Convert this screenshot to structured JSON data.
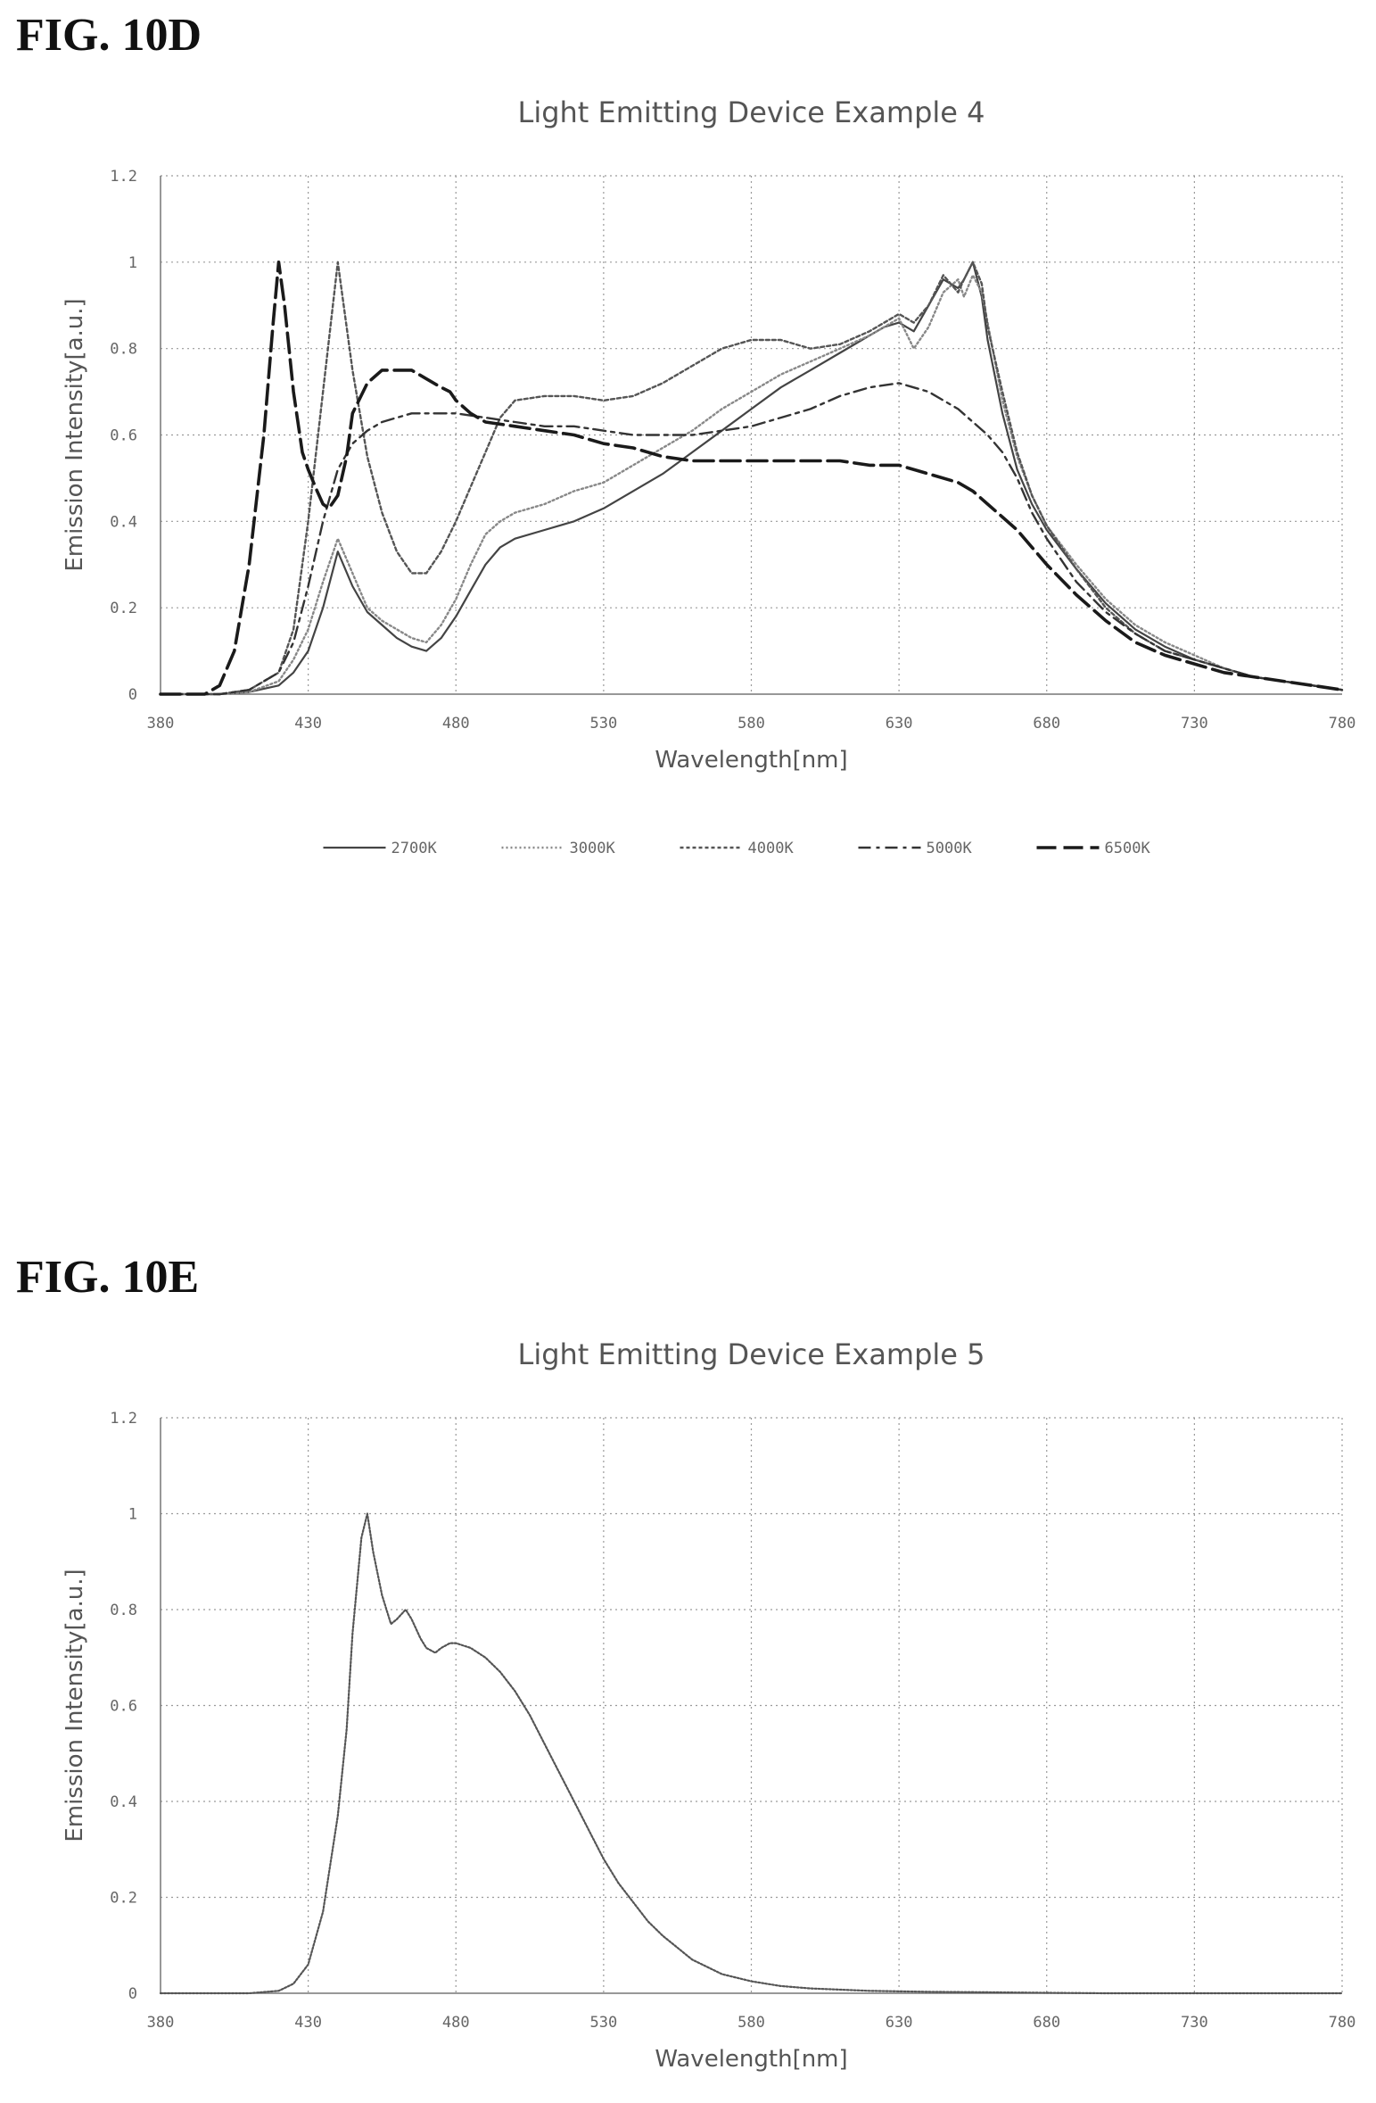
{
  "figures": [
    {
      "label": "FIG. 10D"
    },
    {
      "label": "FIG. 10E"
    }
  ],
  "chart_data": [
    {
      "type": "line",
      "title": "Light Emitting Device Example 4",
      "xlabel": "Wavelength[nm]",
      "ylabel": "Emission Intensity[a.u.]",
      "xlim": [
        380,
        780
      ],
      "ylim": [
        0,
        1.2
      ],
      "xticks": [
        380,
        430,
        480,
        530,
        580,
        630,
        680,
        730,
        780
      ],
      "yticks": [
        0,
        0.2,
        0.4,
        0.6,
        0.8,
        1,
        1.2
      ],
      "ytick_labels": [
        "0",
        "0.2",
        "0.4",
        "0.6",
        "0.8",
        "1",
        "1.2"
      ],
      "grid": true,
      "legend_position": "bottom",
      "series": [
        {
          "name": "2700K",
          "x": [
            380,
            400,
            410,
            420,
            425,
            430,
            435,
            440,
            445,
            450,
            455,
            460,
            465,
            470,
            475,
            480,
            485,
            490,
            495,
            500,
            510,
            520,
            530,
            540,
            550,
            560,
            570,
            580,
            590,
            600,
            610,
            620,
            625,
            630,
            635,
            640,
            645,
            650,
            652,
            655,
            658,
            660,
            665,
            670,
            675,
            680,
            690,
            700,
            710,
            720,
            730,
            740,
            750,
            760,
            770,
            780
          ],
          "y": [
            0,
            0,
            0.005,
            0.02,
            0.05,
            0.1,
            0.2,
            0.33,
            0.25,
            0.19,
            0.16,
            0.13,
            0.11,
            0.1,
            0.13,
            0.18,
            0.24,
            0.3,
            0.34,
            0.36,
            0.38,
            0.4,
            0.43,
            0.47,
            0.51,
            0.56,
            0.61,
            0.66,
            0.71,
            0.75,
            0.79,
            0.83,
            0.85,
            0.86,
            0.84,
            0.9,
            0.96,
            0.94,
            0.96,
            1.0,
            0.92,
            0.82,
            0.65,
            0.52,
            0.44,
            0.38,
            0.29,
            0.21,
            0.15,
            0.11,
            0.08,
            0.06,
            0.04,
            0.03,
            0.02,
            0.01
          ]
        },
        {
          "name": "3000K",
          "x": [
            380,
            400,
            410,
            420,
            425,
            430,
            435,
            440,
            445,
            450,
            455,
            460,
            465,
            470,
            475,
            480,
            485,
            490,
            495,
            500,
            510,
            520,
            530,
            540,
            550,
            560,
            570,
            580,
            590,
            600,
            610,
            620,
            625,
            630,
            635,
            640,
            645,
            650,
            652,
            655,
            658,
            660,
            665,
            670,
            675,
            680,
            690,
            700,
            710,
            720,
            730,
            740,
            750,
            760,
            770,
            780
          ],
          "y": [
            0,
            0,
            0.005,
            0.03,
            0.08,
            0.15,
            0.26,
            0.36,
            0.28,
            0.2,
            0.17,
            0.15,
            0.13,
            0.12,
            0.16,
            0.22,
            0.3,
            0.37,
            0.4,
            0.42,
            0.44,
            0.47,
            0.49,
            0.53,
            0.57,
            0.61,
            0.66,
            0.7,
            0.74,
            0.77,
            0.8,
            0.83,
            0.85,
            0.87,
            0.8,
            0.85,
            0.93,
            0.96,
            0.92,
            0.97,
            0.93,
            0.86,
            0.68,
            0.55,
            0.46,
            0.39,
            0.3,
            0.22,
            0.16,
            0.12,
            0.09,
            0.06,
            0.04,
            0.03,
            0.02,
            0.01
          ]
        },
        {
          "name": "4000K",
          "x": [
            380,
            400,
            410,
            420,
            425,
            430,
            435,
            440,
            445,
            450,
            455,
            460,
            465,
            470,
            475,
            480,
            485,
            490,
            495,
            500,
            510,
            520,
            530,
            540,
            550,
            560,
            570,
            580,
            590,
            600,
            610,
            620,
            630,
            635,
            640,
            645,
            650,
            652,
            655,
            658,
            660,
            665,
            670,
            675,
            680,
            690,
            700,
            710,
            720,
            730,
            740,
            750,
            760,
            770,
            780
          ],
          "y": [
            0,
            0,
            0.01,
            0.05,
            0.15,
            0.4,
            0.7,
            1.0,
            0.75,
            0.55,
            0.42,
            0.33,
            0.28,
            0.28,
            0.33,
            0.4,
            0.48,
            0.56,
            0.64,
            0.68,
            0.69,
            0.69,
            0.68,
            0.69,
            0.72,
            0.76,
            0.8,
            0.82,
            0.82,
            0.8,
            0.81,
            0.84,
            0.88,
            0.86,
            0.9,
            0.97,
            0.93,
            0.96,
            1.0,
            0.95,
            0.85,
            0.7,
            0.56,
            0.46,
            0.39,
            0.29,
            0.2,
            0.14,
            0.1,
            0.08,
            0.06,
            0.04,
            0.03,
            0.02,
            0.01
          ]
        },
        {
          "name": "5000K",
          "x": [
            380,
            400,
            410,
            420,
            425,
            430,
            435,
            440,
            445,
            450,
            455,
            460,
            465,
            470,
            475,
            480,
            490,
            500,
            510,
            520,
            530,
            540,
            550,
            560,
            570,
            580,
            590,
            600,
            610,
            620,
            630,
            640,
            650,
            660,
            665,
            670,
            675,
            680,
            690,
            700,
            710,
            720,
            730,
            740,
            750,
            760,
            770,
            780
          ],
          "y": [
            0,
            0,
            0.01,
            0.05,
            0.12,
            0.25,
            0.4,
            0.52,
            0.58,
            0.61,
            0.63,
            0.64,
            0.65,
            0.65,
            0.65,
            0.65,
            0.64,
            0.63,
            0.62,
            0.62,
            0.61,
            0.6,
            0.6,
            0.6,
            0.61,
            0.62,
            0.64,
            0.66,
            0.69,
            0.71,
            0.72,
            0.7,
            0.66,
            0.6,
            0.56,
            0.5,
            0.42,
            0.36,
            0.26,
            0.19,
            0.14,
            0.1,
            0.08,
            0.06,
            0.04,
            0.03,
            0.02,
            0.01
          ]
        },
        {
          "name": "6500K",
          "x": [
            380,
            395,
            400,
            405,
            410,
            415,
            418,
            420,
            422,
            425,
            428,
            430,
            433,
            435,
            437,
            440,
            443,
            445,
            450,
            455,
            460,
            465,
            470,
            475,
            478,
            480,
            485,
            490,
            500,
            510,
            520,
            530,
            540,
            550,
            560,
            570,
            580,
            590,
            600,
            610,
            620,
            630,
            640,
            650,
            655,
            660,
            665,
            670,
            675,
            680,
            690,
            700,
            710,
            720,
            730,
            740,
            750,
            760,
            770,
            780
          ],
          "y": [
            0,
            0,
            0.02,
            0.1,
            0.3,
            0.6,
            0.85,
            1.0,
            0.9,
            0.7,
            0.56,
            0.52,
            0.47,
            0.44,
            0.43,
            0.46,
            0.55,
            0.65,
            0.72,
            0.75,
            0.75,
            0.75,
            0.73,
            0.71,
            0.7,
            0.68,
            0.65,
            0.63,
            0.62,
            0.61,
            0.6,
            0.58,
            0.57,
            0.55,
            0.54,
            0.54,
            0.54,
            0.54,
            0.54,
            0.54,
            0.53,
            0.53,
            0.51,
            0.49,
            0.47,
            0.44,
            0.41,
            0.38,
            0.34,
            0.3,
            0.23,
            0.17,
            0.12,
            0.09,
            0.07,
            0.05,
            0.04,
            0.03,
            0.02,
            0.01
          ]
        }
      ]
    },
    {
      "type": "line",
      "title": "Light Emitting Device Example 5",
      "xlabel": "Wavelength[nm]",
      "ylabel": "Emission Intensity[a.u.]",
      "xlim": [
        380,
        780
      ],
      "ylim": [
        0,
        1.2
      ],
      "xticks": [
        380,
        430,
        480,
        530,
        580,
        630,
        680,
        730,
        780
      ],
      "yticks": [
        0,
        0.2,
        0.4,
        0.6,
        0.8,
        1,
        1.2
      ],
      "ytick_labels": [
        "0",
        "0.2",
        "0.4",
        "0.6",
        "0.8",
        "1",
        "1.2"
      ],
      "grid": true,
      "series": [
        {
          "x": [
            380,
            410,
            420,
            425,
            430,
            435,
            440,
            443,
            445,
            448,
            450,
            452,
            455,
            458,
            460,
            463,
            465,
            468,
            470,
            473,
            475,
            478,
            480,
            485,
            490,
            495,
            500,
            505,
            510,
            515,
            520,
            525,
            530,
            535,
            540,
            545,
            550,
            560,
            570,
            580,
            590,
            600,
            620,
            640,
            660,
            680,
            700,
            720,
            740,
            760,
            780
          ],
          "y": [
            0,
            0,
            0.005,
            0.02,
            0.06,
            0.17,
            0.37,
            0.55,
            0.75,
            0.95,
            1.0,
            0.92,
            0.83,
            0.77,
            0.78,
            0.8,
            0.78,
            0.74,
            0.72,
            0.71,
            0.72,
            0.73,
            0.73,
            0.72,
            0.7,
            0.67,
            0.63,
            0.58,
            0.52,
            0.46,
            0.4,
            0.34,
            0.28,
            0.23,
            0.19,
            0.15,
            0.12,
            0.07,
            0.04,
            0.025,
            0.015,
            0.01,
            0.005,
            0.003,
            0.002,
            0.001,
            0,
            0,
            0,
            0,
            0
          ]
        }
      ]
    }
  ]
}
